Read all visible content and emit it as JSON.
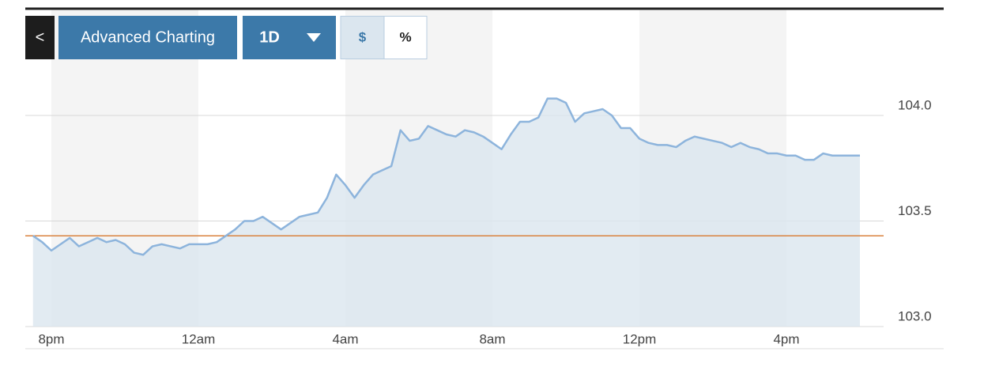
{
  "toolbar": {
    "back": "<",
    "title": "Advanced Charting",
    "range": "1D",
    "mode_dollar": "$",
    "mode_percent": "%"
  },
  "chart_data": {
    "type": "line",
    "categories": [
      null,
      null,
      "8pm",
      null,
      null,
      null,
      null,
      null,
      null,
      null,
      null,
      null,
      null,
      null,
      null,
      null,
      null,
      null,
      "12am",
      null,
      null,
      null,
      null,
      null,
      null,
      null,
      null,
      null,
      null,
      null,
      null,
      null,
      null,
      null,
      "4am",
      null,
      null,
      null,
      null,
      null,
      null,
      null,
      null,
      null,
      null,
      null,
      null,
      null,
      null,
      null,
      "8am",
      null,
      null,
      null,
      null,
      null,
      null,
      null,
      null,
      null,
      null,
      null,
      null,
      null,
      null,
      null,
      "12pm",
      null,
      null,
      null,
      null,
      null,
      null,
      null,
      null,
      null,
      null,
      null,
      null,
      null,
      null,
      null,
      "4pm",
      null,
      null,
      null,
      null,
      null,
      null,
      null,
      null
    ],
    "values": [
      103.43,
      103.4,
      103.36,
      103.39,
      103.42,
      103.38,
      103.4,
      103.42,
      103.4,
      103.41,
      103.39,
      103.35,
      103.34,
      103.38,
      103.39,
      103.38,
      103.37,
      103.39,
      103.39,
      103.39,
      103.4,
      103.43,
      103.46,
      103.5,
      103.5,
      103.52,
      103.49,
      103.46,
      103.49,
      103.52,
      103.53,
      103.54,
      103.61,
      103.72,
      103.67,
      103.61,
      103.67,
      103.72,
      103.74,
      103.76,
      103.93,
      103.88,
      103.89,
      103.95,
      103.93,
      103.91,
      103.9,
      103.93,
      103.92,
      103.9,
      103.87,
      103.84,
      103.91,
      103.97,
      103.97,
      103.99,
      104.08,
      104.08,
      104.06,
      103.97,
      104.01,
      104.02,
      104.03,
      104.0,
      103.94,
      103.94,
      103.89,
      103.87,
      103.86,
      103.86,
      103.85,
      103.88,
      103.9,
      103.89,
      103.88,
      103.87,
      103.85,
      103.87,
      103.85,
      103.84,
      103.82,
      103.82,
      103.81,
      103.81,
      103.79,
      103.79,
      103.82,
      103.81,
      103.81,
      103.81,
      103.81
    ],
    "color": "#8db4dc",
    "area_color": "#dbe6ef",
    "ylim": [
      103.0,
      104.5
    ],
    "yticks": [
      {
        "value": 103.0,
        "label": "103.0"
      },
      {
        "value": 103.5,
        "label": "103.5"
      },
      {
        "value": 104.0,
        "label": "104.0"
      }
    ],
    "grid": true,
    "reference_line": {
      "value": 103.43,
      "color": "#d9823f"
    }
  }
}
